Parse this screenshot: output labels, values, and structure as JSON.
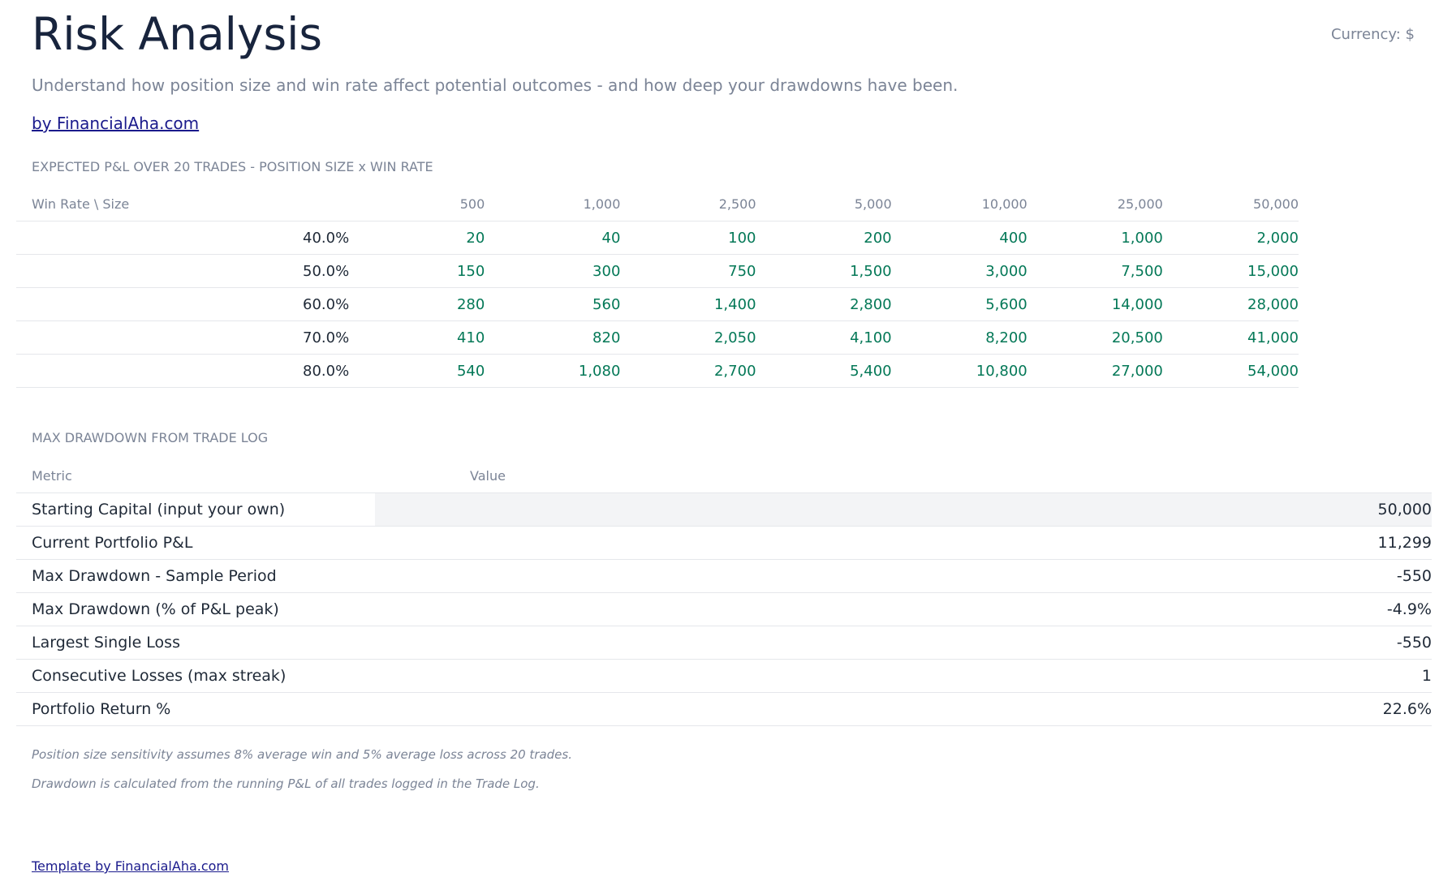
{
  "header": {
    "title": "Risk Analysis",
    "currency": "Currency: $",
    "subtitle": "Understand how position size and win rate affect potential outcomes - and how deep your drawdowns have been.",
    "byline": "by FinancialAha.com"
  },
  "sensitivity": {
    "heading": "EXPECTED P&L OVER 20 TRADES - POSITION SIZE x WIN RATE",
    "corner_label": "Win Rate \\ Size",
    "columns": [
      "500",
      "1,000",
      "2,500",
      "5,000",
      "10,000",
      "25,000",
      "50,000"
    ],
    "rows": [
      {
        "label": "40.0%",
        "values": [
          "20",
          "40",
          "100",
          "200",
          "400",
          "1,000",
          "2,000"
        ]
      },
      {
        "label": "50.0%",
        "values": [
          "150",
          "300",
          "750",
          "1,500",
          "3,000",
          "7,500",
          "15,000"
        ]
      },
      {
        "label": "60.0%",
        "values": [
          "280",
          "560",
          "1,400",
          "2,800",
          "5,600",
          "14,000",
          "28,000"
        ]
      },
      {
        "label": "70.0%",
        "values": [
          "410",
          "820",
          "2,050",
          "4,100",
          "8,200",
          "20,500",
          "41,000"
        ]
      },
      {
        "label": "80.0%",
        "values": [
          "540",
          "1,080",
          "2,700",
          "5,400",
          "10,800",
          "27,000",
          "54,000"
        ]
      }
    ]
  },
  "drawdown": {
    "heading": "MAX DRAWDOWN FROM TRADE LOG",
    "metric_header": "Metric",
    "value_header": "Value",
    "rows": [
      {
        "metric": "Starting Capital (input your own)",
        "value": "50,000"
      },
      {
        "metric": "Current Portfolio P&L",
        "value": "11,299"
      },
      {
        "metric": "Max Drawdown - Sample Period",
        "value": "-550"
      },
      {
        "metric": "Max Drawdown (% of P&L peak)",
        "value": "-4.9%"
      },
      {
        "metric": "Largest Single Loss",
        "value": "-550"
      },
      {
        "metric": "Consecutive Losses (max streak)",
        "value": "1"
      },
      {
        "metric": "Portfolio Return %",
        "value": "22.6%"
      }
    ]
  },
  "notes": [
    "Position size sensitivity assumes 8% average win and 5% average loss across 20 trades.",
    "Drawdown is calculated from the running P&L of all trades logged in the Trade Log."
  ],
  "footer": {
    "link": "Template by FinancialAha.com"
  }
}
